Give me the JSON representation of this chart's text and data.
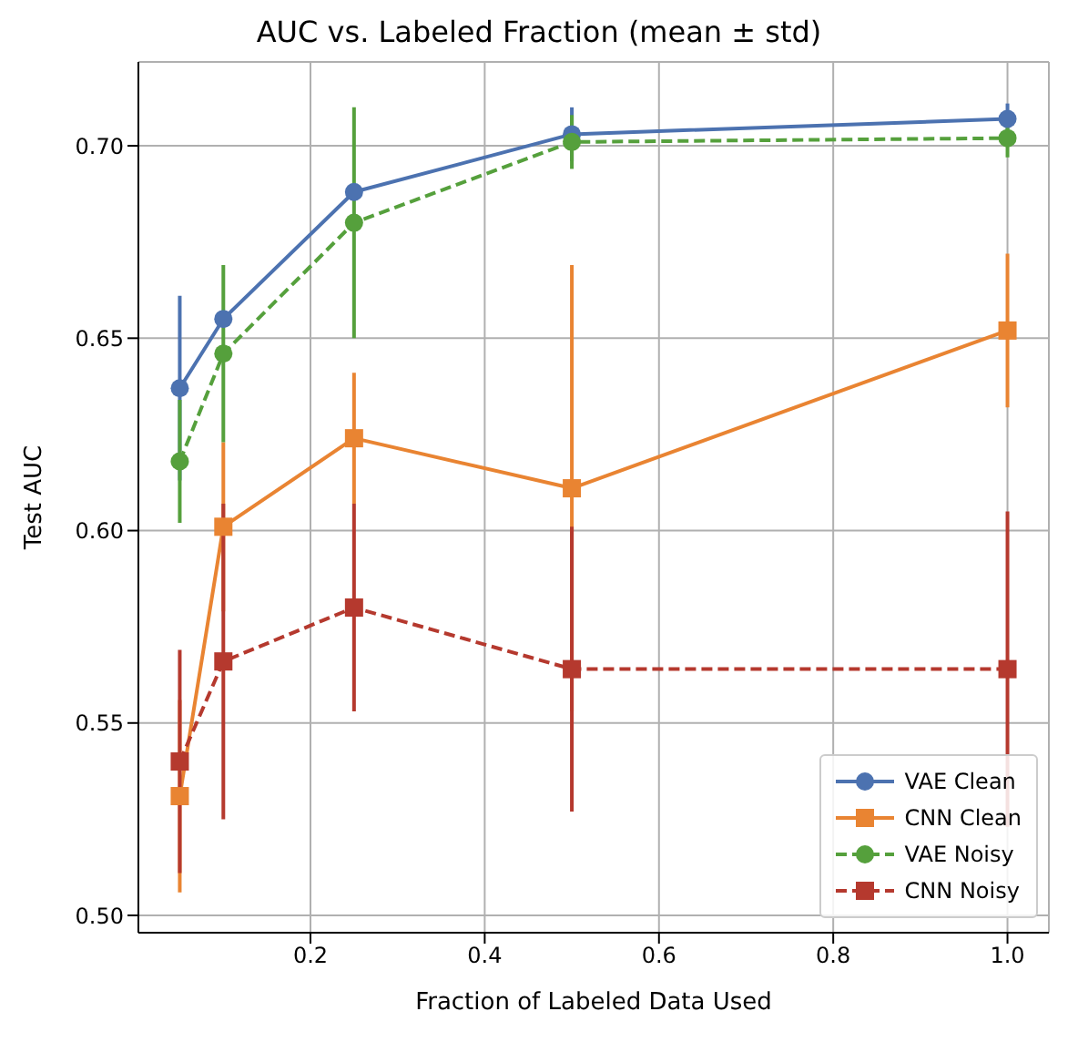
{
  "chart_data": {
    "type": "line",
    "title": "AUC vs. Labeled Fraction (mean ± std)",
    "xlabel": "Fraction of Labeled Data Used",
    "ylabel": "Test AUC",
    "x": [
      0.05,
      0.1,
      0.25,
      0.5,
      1.0
    ],
    "series": [
      {
        "name": "VAE Clean",
        "color": "#4c72b0",
        "marker": "circle",
        "line_style": "solid",
        "values": [
          0.637,
          0.655,
          0.688,
          0.703,
          0.707
        ],
        "errors": [
          0.024,
          null,
          null,
          0.007,
          0.004
        ]
      },
      {
        "name": "CNN Clean",
        "color": "#e98432",
        "marker": "square",
        "line_style": "solid",
        "values": [
          0.531,
          0.601,
          0.624,
          0.611,
          0.652
        ],
        "errors": [
          0.025,
          0.022,
          0.017,
          0.058,
          0.02
        ]
      },
      {
        "name": "VAE Noisy",
        "color": "#55a03c",
        "marker": "circle",
        "line_style": "dashed",
        "values": [
          0.618,
          0.646,
          0.68,
          0.701,
          0.702
        ],
        "errors": [
          0.016,
          0.023,
          0.03,
          0.007,
          0.005
        ]
      },
      {
        "name": "CNN Noisy",
        "color": "#b5392e",
        "marker": "square",
        "line_style": "dashed",
        "values": [
          0.54,
          0.566,
          0.58,
          0.564,
          0.564
        ],
        "errors": [
          0.029,
          0.041,
          0.027,
          0.037,
          0.041
        ]
      }
    ],
    "xlim": [
      0.0025,
      1.0475
    ],
    "xticks": [
      0.2,
      0.4,
      0.6,
      0.8,
      {
        "value": 1.0,
        "label": "1.0"
      }
    ],
    "ylim": [
      0.4955,
      0.7218
    ],
    "yticks": [
      {
        "value": 0.5,
        "label": "0.50"
      },
      0.55,
      {
        "value": 0.6,
        "label": "0.60"
      },
      0.65,
      {
        "value": 0.7,
        "label": "0.70"
      }
    ],
    "grid": true,
    "legend": "bottom right"
  }
}
